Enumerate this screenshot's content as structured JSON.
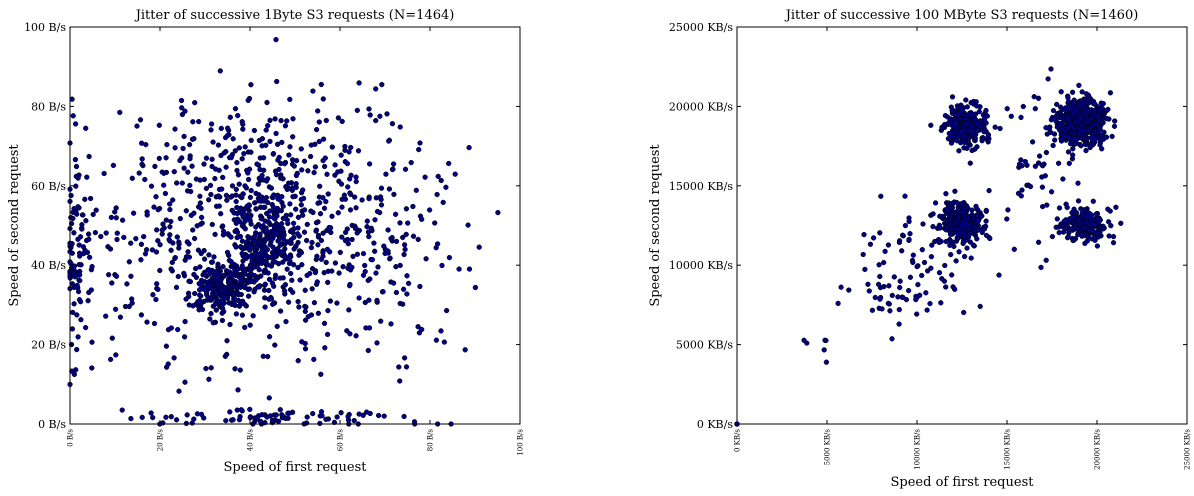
{
  "chart_data": [
    {
      "type": "scatter",
      "title": "Jitter of successive 1Byte S3 requests (N=1464)",
      "xlabel": "Speed of first request",
      "ylabel": "Speed of second request",
      "xlim": [
        0,
        100
      ],
      "ylim": [
        0,
        100
      ],
      "x_ticks": [
        "0 B/s",
        "20 B/s",
        "40 B/s",
        "60 B/s",
        "80 B/s",
        "100 B/s"
      ],
      "y_ticks": [
        "0 B/s",
        "20 B/s",
        "40 B/s",
        "60 B/s",
        "80 B/s",
        "100 B/s"
      ],
      "marker_color": "#000080",
      "clusters": [
        {
          "cx": 34,
          "cy": 34,
          "sx": 3,
          "sy": 3,
          "n": 230
        },
        {
          "cx": 44,
          "cy": 45,
          "sx": 4,
          "sy": 5,
          "n": 230
        },
        {
          "cx": 45,
          "cy": 48,
          "sx": 16,
          "sy": 16,
          "n": 520
        },
        {
          "cx": 1.5,
          "cy": 45,
          "sx": 1.5,
          "sy": 15,
          "n": 90
        },
        {
          "cx": 46,
          "cy": 1.5,
          "sx": 17,
          "sy": 1.0,
          "n": 80
        },
        {
          "cx": 40,
          "cy": 65,
          "sx": 14,
          "sy": 8,
          "n": 120
        },
        {
          "cx": 15,
          "cy": 40,
          "sx": 8,
          "sy": 14,
          "n": 80
        },
        {
          "cx": 70,
          "cy": 45,
          "sx": 10,
          "sy": 18,
          "n": 114
        }
      ],
      "seed": 7
    },
    {
      "type": "scatter",
      "title": "Jitter of successive 100 MByte S3 requests (N=1460)",
      "xlabel": "Speed of first request",
      "ylabel": "Speed of second request",
      "xlim": [
        0,
        25000
      ],
      "ylim": [
        0,
        25000
      ],
      "x_ticks": [
        "0 KB/s",
        "5000 KB/s",
        "10000 KB/s",
        "15000 KB/s",
        "20000 KB/s",
        "25000 KB/s"
      ],
      "y_ticks": [
        "0 KB/s",
        "5000 KB/s",
        "10000 KB/s",
        "15000 KB/s",
        "20000 KB/s",
        "25000 KB/s"
      ],
      "marker_color": "#000080",
      "clusters": [
        {
          "cx": 19200,
          "cy": 19000,
          "sx": 700,
          "sy": 700,
          "n": 560
        },
        {
          "cx": 12500,
          "cy": 12600,
          "sx": 600,
          "sy": 600,
          "n": 300
        },
        {
          "cx": 12800,
          "cy": 18800,
          "sx": 650,
          "sy": 700,
          "n": 230
        },
        {
          "cx": 19300,
          "cy": 12600,
          "sx": 700,
          "sy": 500,
          "n": 200
        },
        {
          "cx": 10000,
          "cy": 10500,
          "sx": 1800,
          "sy": 1800,
          "n": 70
        },
        {
          "cx": 16500,
          "cy": 16000,
          "sx": 1500,
          "sy": 3000,
          "n": 60
        },
        {
          "cx": 8500,
          "cy": 8000,
          "sx": 1200,
          "sy": 1000,
          "n": 30
        },
        {
          "cx": 5000,
          "cy": 5000,
          "sx": 600,
          "sy": 700,
          "n": 6
        },
        {
          "cx": 0,
          "cy": 0,
          "sx": 0,
          "sy": 0,
          "n": 4
        }
      ],
      "seed": 13
    }
  ]
}
